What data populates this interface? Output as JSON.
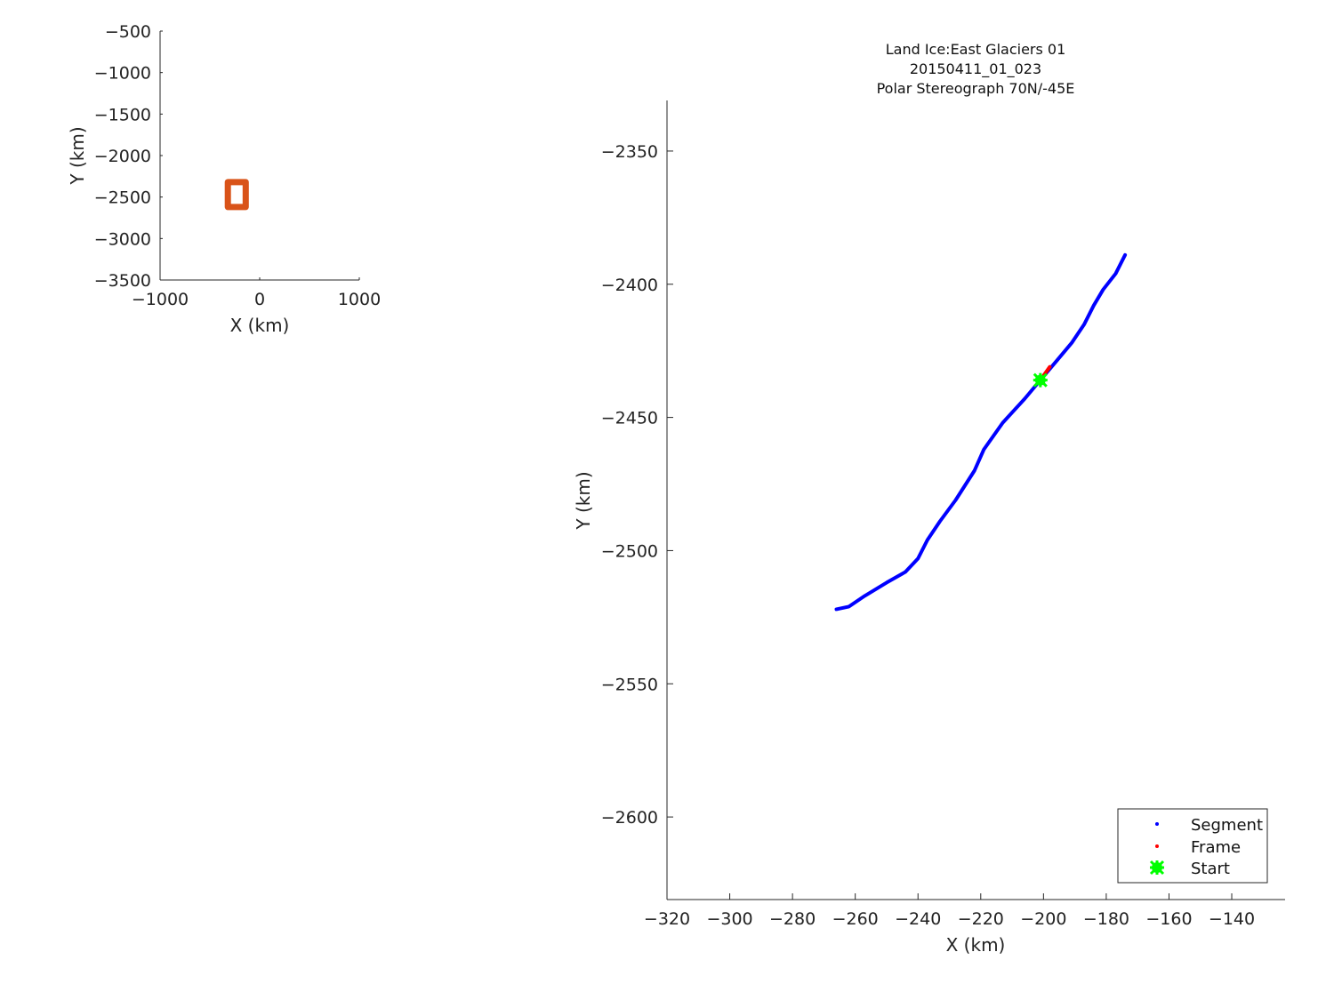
{
  "chart_data": [
    {
      "type": "line",
      "title": "",
      "xlabel": "X (km)",
      "ylabel": "Y (km)",
      "xlim": [
        -1000,
        1000
      ],
      "ylim": [
        -3500,
        -500
      ],
      "xticks": [
        -1000,
        0,
        1000
      ],
      "yticks": [
        -500,
        -1000,
        -1500,
        -2000,
        -2500,
        -3000,
        -3500
      ],
      "grid": false,
      "series": [
        {
          "color": "#d95319",
          "x": [
            -320,
            -140,
            -140,
            -320,
            -320
          ],
          "y": [
            -2320,
            -2320,
            -2620,
            -2620,
            -2320
          ]
        }
      ]
    },
    {
      "type": "line",
      "title_lines": [
        "Land Ice:East Glaciers 01",
        "20150411_01_023",
        "Polar Stereograph 70N/-45E"
      ],
      "xlabel": "X (km)",
      "ylabel": "Y (km)",
      "xlim": [
        -320,
        -123
      ],
      "ylim": [
        -2631,
        -2331
      ],
      "xticks": [
        -320,
        -300,
        -280,
        -260,
        -240,
        -220,
        -200,
        -180,
        -160,
        -140
      ],
      "yticks": [
        -2350,
        -2400,
        -2450,
        -2500,
        -2550,
        -2600
      ],
      "grid": false,
      "legend_position": "bottom-right",
      "series": [
        {
          "name": "Segment",
          "color": "#0000ff",
          "x": [
            -266,
            -262,
            -257,
            -250,
            -244,
            -240,
            -237,
            -233,
            -228,
            -222,
            -219,
            -213,
            -206,
            -201,
            -196,
            -191,
            -187,
            -184,
            -181,
            -177,
            -174
          ],
          "y": [
            -2522,
            -2521,
            -2517,
            -2512,
            -2508,
            -2503,
            -2496,
            -2489,
            -2481,
            -2470,
            -2462,
            -2452,
            -2443,
            -2436,
            -2429,
            -2422,
            -2415,
            -2408,
            -2402,
            -2396,
            -2389
          ]
        },
        {
          "name": "Frame",
          "color": "#ff0000",
          "x": [
            -201,
            -198
          ],
          "y": [
            -2436,
            -2431
          ]
        },
        {
          "name": "Start",
          "color": "#00ff00",
          "x": [
            -201
          ],
          "y": [
            -2436
          ]
        }
      ]
    }
  ]
}
